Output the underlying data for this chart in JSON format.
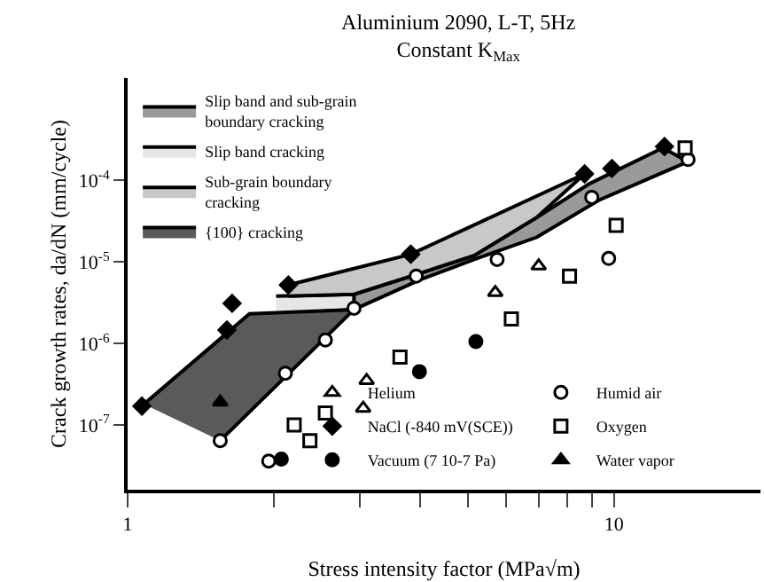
{
  "chart_data": {
    "type": "scatter",
    "title": "Aluminium 2090, L-T, 5Hz",
    "subtitle": "Constant K$_{Max}$",
    "xlabel": "Stress intensity factor (MPa√m)",
    "ylabel": "Crack growth rates, da/dN (mm/cycle)",
    "log": "xy",
    "xlim": [
      1,
      20
    ],
    "ylim": [
      1.6e-08,
      0.0018
    ],
    "xticks": [
      1,
      {
        "value": 2,
        "label": null
      },
      {
        "value": 3,
        "label": null
      },
      {
        "value": 4,
        "label": null
      },
      {
        "value": 5,
        "label": null
      },
      {
        "value": 6,
        "label": null
      },
      {
        "value": 7,
        "label": null
      },
      {
        "value": 8,
        "label": null
      },
      {
        "value": 9,
        "label": null
      },
      10
    ],
    "yticks": [
      {
        "value": 1e-07,
        "label": "10$^{-7}$"
      },
      {
        "value": 1e-06,
        "label": "10$^{-6}$"
      },
      {
        "value": 1e-05,
        "label": "10$^{-5}$"
      },
      {
        "value": 0.0001,
        "label": "10$^{-4}$"
      }
    ],
    "legend": "top left",
    "series": [
      {
        "type": "area",
        "name": "Slip band and sub-grain boundary cracking",
        "color": "#9a9a9a",
        "x": [
          2.92,
          4.01,
          5.16,
          6.93,
          8.9,
          12.6,
          14.2,
          9.3,
          6.93,
          5.16,
          4.01,
          2.92
        ],
        "values": [
          4e-06,
          7.3e-06,
          1.2e-05,
          3.5e-05,
          9.1e-05,
          0.00025,
          0.00017,
          5.7e-05,
          2e-05,
          1.07e-05,
          6.1e-06,
          2.6e-06
        ]
      },
      {
        "type": "area",
        "name": "Slip band cracking",
        "color": "#e6e6e6",
        "x": [
          2.02,
          2.92,
          2.92,
          2.02
        ],
        "values": [
          3.8e-06,
          4e-06,
          2.6e-06,
          2.3e-06
        ]
      },
      {
        "type": "area",
        "name": "Sub-grain boundary cracking",
        "color": "#c8c8c8",
        "x": [
          2.14,
          3.82,
          8.7,
          6.93,
          5.16,
          4.01,
          2.92,
          2.14
        ],
        "values": [
          5.2e-06,
          1.24e-05,
          0.00012,
          3.5e-05,
          1.2e-05,
          7.3e-06,
          4e-06,
          3.8e-06
        ]
      },
      {
        "type": "area",
        "name": "{100} cracking",
        "color": "#5a5a5a",
        "x": [
          1.08,
          1.78,
          2.92,
          1.55
        ],
        "values": [
          1.8e-07,
          2.3e-06,
          2.6e-06,
          6.4e-08
        ]
      },
      {
        "name": "Helium",
        "color": "#ffffff",
        "marker": "triangle",
        "x": [
          3.05,
          3.1,
          5.7,
          7.0
        ],
        "values": [
          1.6e-07,
          3.5e-07,
          4.2e-06,
          8.9e-06
        ]
      },
      {
        "name": "Humid air",
        "color": "#ffffff",
        "marker": "circle",
        "x": [
          1.95,
          1.55,
          2.11,
          2.55,
          2.92,
          3.92,
          5.75,
          9.0,
          9.75,
          14.2
        ],
        "values": [
          3.6e-08,
          6.4e-08,
          4.3e-07,
          1.1e-06,
          2.7e-06,
          6.7e-06,
          1.07e-05,
          6.2e-05,
          1.1e-05,
          0.00018
        ]
      },
      {
        "name": "NaCl (-840 mV(SCE))",
        "color": "#000000",
        "marker": "diamond",
        "x": [
          1.07,
          1.6,
          1.64,
          2.14,
          3.82,
          8.7,
          9.9,
          12.7
        ],
        "values": [
          1.7e-07,
          1.46e-06,
          3.1e-06,
          5.2e-06,
          1.24e-05,
          0.00012,
          0.00014,
          0.00026
        ]
      },
      {
        "name": "Oxygen",
        "color": "#ffffff",
        "marker": "square",
        "x": [
          2.2,
          2.37,
          2.55,
          3.63,
          6.15,
          8.1,
          10.1,
          14.0
        ],
        "values": [
          1e-07,
          6.4e-08,
          1.4e-07,
          6.8e-07,
          2e-06,
          6.7e-06,
          2.8e-05,
          0.00025
        ]
      },
      {
        "name": "Vacuum (7 10-7 Pa)",
        "color": "#000000",
        "marker": "circle",
        "x": [
          2.07,
          3.98,
          5.2
        ],
        "values": [
          3.8e-08,
          4.5e-07,
          1.05e-06
        ]
      },
      {
        "name": "Water vapor",
        "color": "#000000",
        "marker": "triangle",
        "x": [
          1.55
        ],
        "values": [
          1.9e-07
        ]
      }
    ]
  }
}
